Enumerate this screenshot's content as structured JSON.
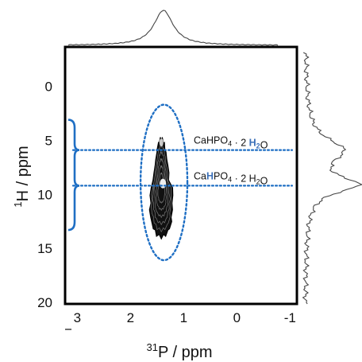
{
  "chart_data": {
    "type": "contour",
    "xlabel": {
      "super": "31",
      "text": "P  / ppm"
    },
    "ylabel": {
      "super": "1",
      "text": "H  / ppm"
    },
    "xlim": [
      3.2,
      -1.1
    ],
    "ylim": [
      -3.5,
      20
    ],
    "x_ticks": [
      3,
      2,
      1,
      0,
      -1
    ],
    "y_ticks": [
      0,
      5,
      10,
      15,
      20
    ],
    "contour_peak": {
      "x_center": 1.42,
      "y_center": 8.3,
      "x_half_width": 0.28,
      "y_range": [
        4.3,
        13.6
      ]
    },
    "ellipse": {
      "x_center": 1.37,
      "y_center": 8.9,
      "x_half_width": 0.44,
      "y_half_width": 7.2,
      "color": "#1f6fc4"
    },
    "reference_lines": [
      {
        "y": 5.9,
        "brace_range": [
          3.1,
          5.9
        ]
      },
      {
        "y": 9.2,
        "brace_range": [
          9.2,
          13.3
        ]
      }
    ],
    "annotations": [
      {
        "y": 5.9,
        "parts": [
          "CaHPO",
          "4",
          " · 2 ",
          "H",
          "2",
          "O"
        ],
        "highlight_index": [
          3,
          4
        ]
      },
      {
        "y": 9.2,
        "parts": [
          "Ca",
          "H",
          "PO",
          "4",
          " · 2 H",
          "2",
          "O"
        ],
        "highlight_index": [
          1
        ]
      }
    ],
    "projections": {
      "top": "31P projection (single peak)",
      "right": "1H projection (two maxima)"
    },
    "colors": {
      "accent": "#1f6fc4",
      "highlight": "#3a6fb8",
      "contour": "#111111"
    }
  }
}
